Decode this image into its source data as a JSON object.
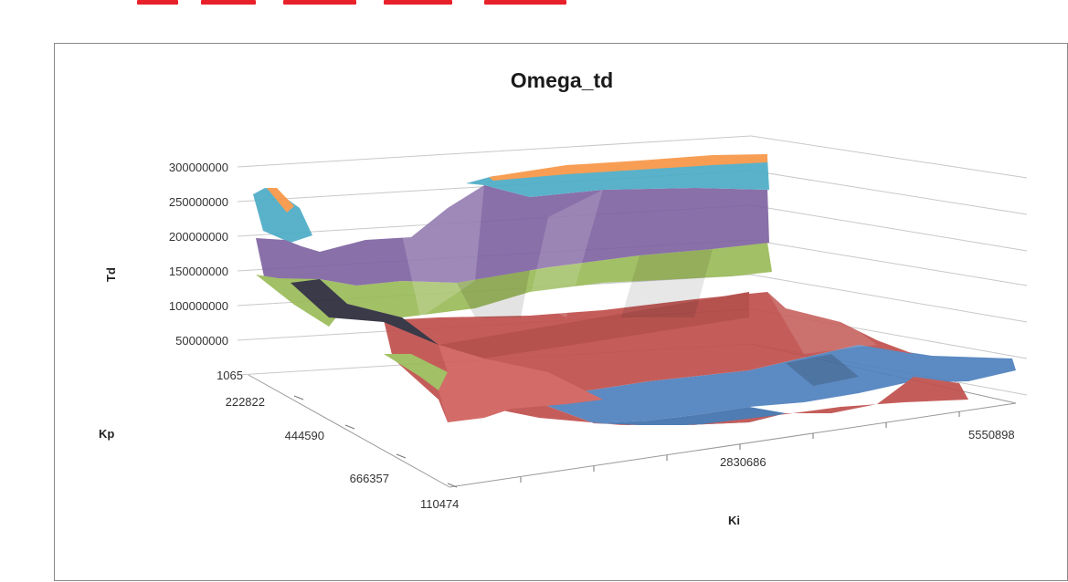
{
  "chart_data": {
    "type": "surface",
    "title": "Omega_td",
    "zlabel": "Td",
    "ylabel": "Kp",
    "xlabel": "Ki",
    "z_ticks": [
      "300000000",
      "250000000",
      "200000000",
      "150000000",
      "100000000",
      "50000000",
      "1065"
    ],
    "kp_ticks": [
      "222822",
      "444590",
      "666357"
    ],
    "ki_ticks": [
      "110474",
      "2830686",
      "5550898"
    ],
    "zlim": [
      0,
      300000000
    ],
    "bands": [
      {
        "range": [
          0,
          50000000
        ],
        "color": "#4f81bd"
      },
      {
        "range": [
          50000000,
          100000000
        ],
        "color": "#c0504d"
      },
      {
        "range": [
          100000000,
          150000000
        ],
        "color": "#c0504d"
      },
      {
        "range": [
          150000000,
          200000000
        ],
        "color": "#9bbb59"
      },
      {
        "range": [
          200000000,
          250000000
        ],
        "color": "#8064a2"
      },
      {
        "range": [
          250000000,
          300000000
        ],
        "color": "#4bacc6"
      },
      {
        "range": [
          300000000,
          350000000
        ],
        "color": "#f79646"
      }
    ],
    "grid": true,
    "legend": "none"
  }
}
